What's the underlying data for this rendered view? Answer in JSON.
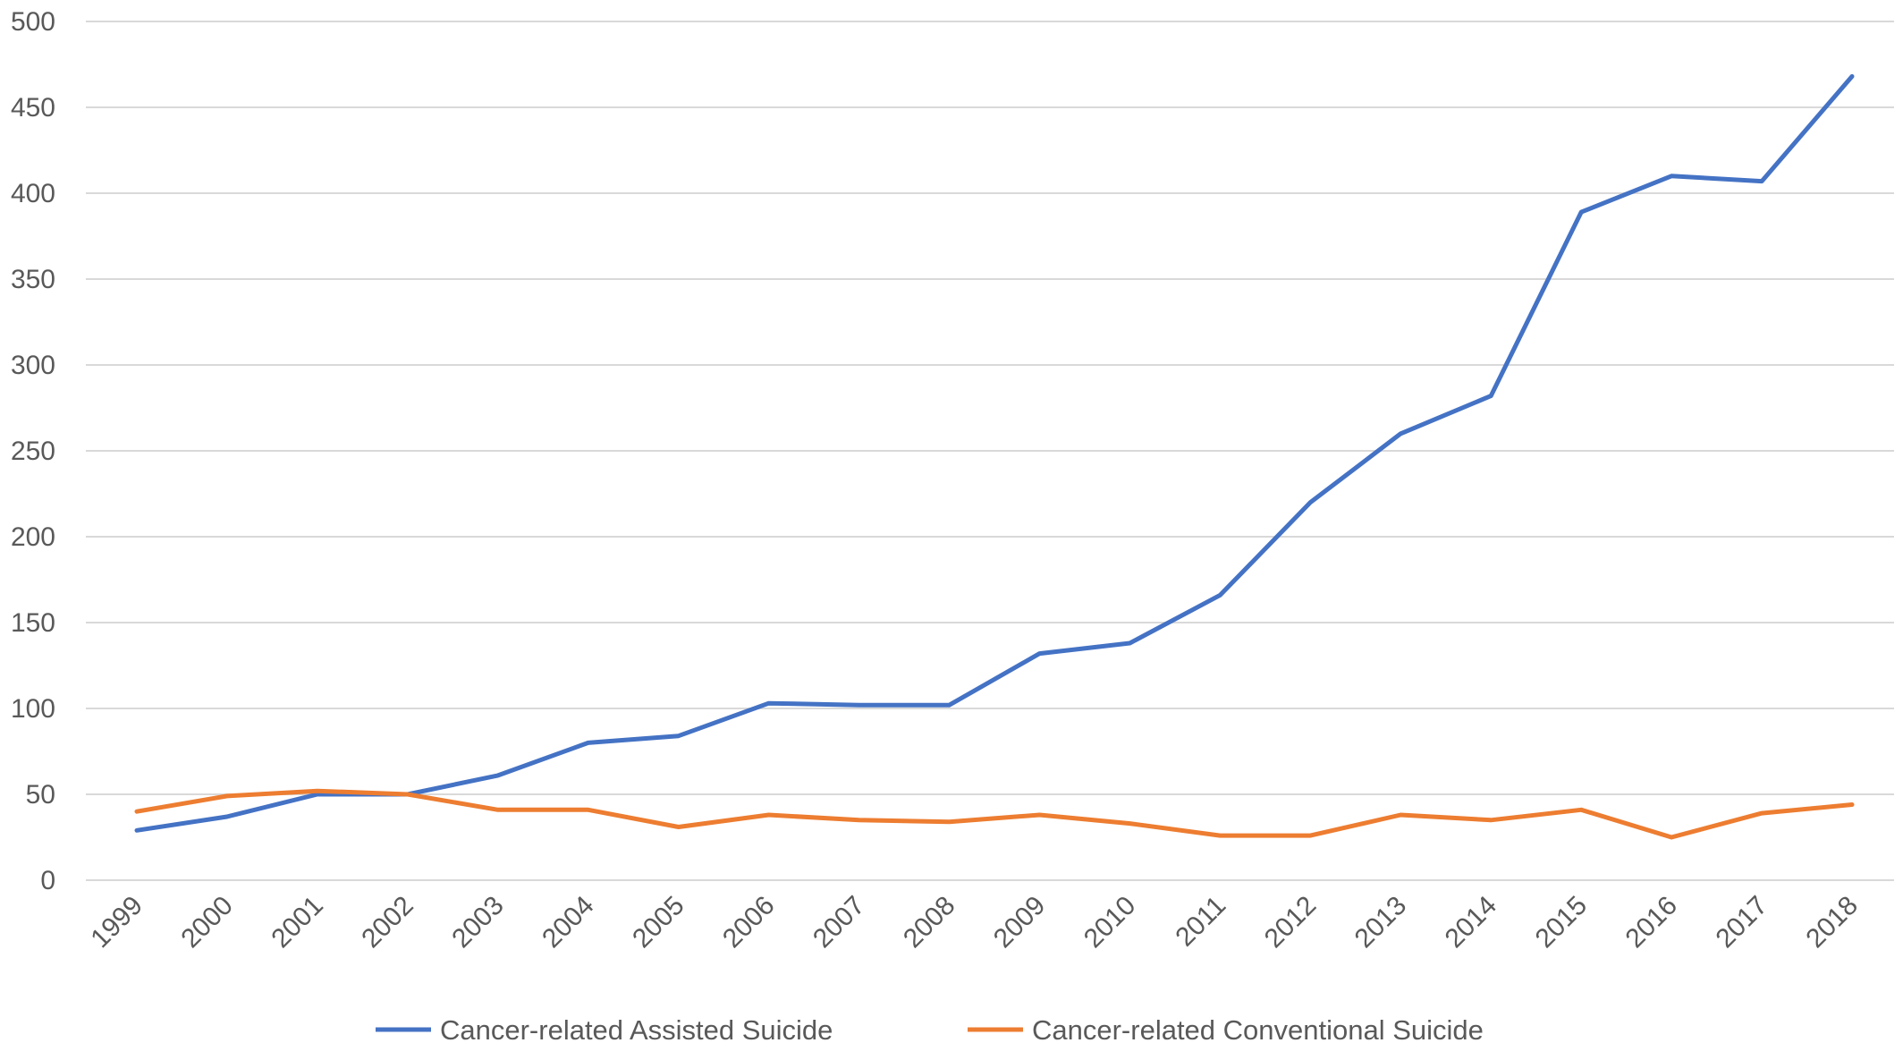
{
  "chart_data": {
    "type": "line",
    "title": "",
    "xlabel": "",
    "ylabel": "",
    "x": [
      "1999",
      "2000",
      "2001",
      "2002",
      "2003",
      "2004",
      "2005",
      "2006",
      "2007",
      "2008",
      "2009",
      "2010",
      "2011",
      "2012",
      "2013",
      "2014",
      "2015",
      "2016",
      "2017",
      "2018"
    ],
    "ylim": [
      0,
      500
    ],
    "yticks": [
      0,
      50,
      100,
      150,
      200,
      250,
      300,
      350,
      400,
      450,
      500
    ],
    "grid": true,
    "legend_position": "bottom",
    "series": [
      {
        "name": "Cancer-related Assisted Suicide",
        "color": "#4472C4",
        "values": [
          29,
          37,
          50,
          50,
          61,
          80,
          84,
          103,
          102,
          102,
          132,
          138,
          166,
          220,
          260,
          282,
          389,
          410,
          407,
          468
        ]
      },
      {
        "name": "Cancer-related Conventional Suicide",
        "color": "#ED7D31",
        "values": [
          40,
          49,
          52,
          50,
          41,
          41,
          31,
          38,
          35,
          34,
          38,
          33,
          26,
          26,
          38,
          35,
          41,
          25,
          39,
          44
        ]
      }
    ]
  }
}
